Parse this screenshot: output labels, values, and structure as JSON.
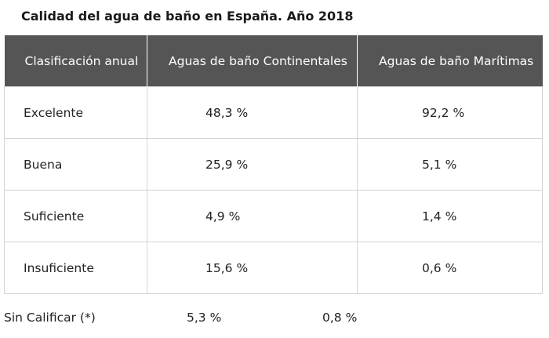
{
  "title": "Calidad del agua de baño en España. Año 2018",
  "table": {
    "headers": [
      "Clasificación anual",
      "Aguas de baño Continentales",
      "Aguas de baño Marítimas"
    ],
    "rows": [
      [
        "Excelente",
        "48,3 %",
        "92,2 %"
      ],
      [
        "Buena",
        "25,9 %",
        "5,1 %"
      ],
      [
        "Suficiente",
        "4,9 %",
        "1,4 %"
      ],
      [
        "Insuficiente",
        "15,6 %",
        "0,6 %"
      ]
    ]
  },
  "footer": {
    "label": "Sin Calificar (*)",
    "continental": "5,3 %",
    "maritime": "0,8 %"
  }
}
